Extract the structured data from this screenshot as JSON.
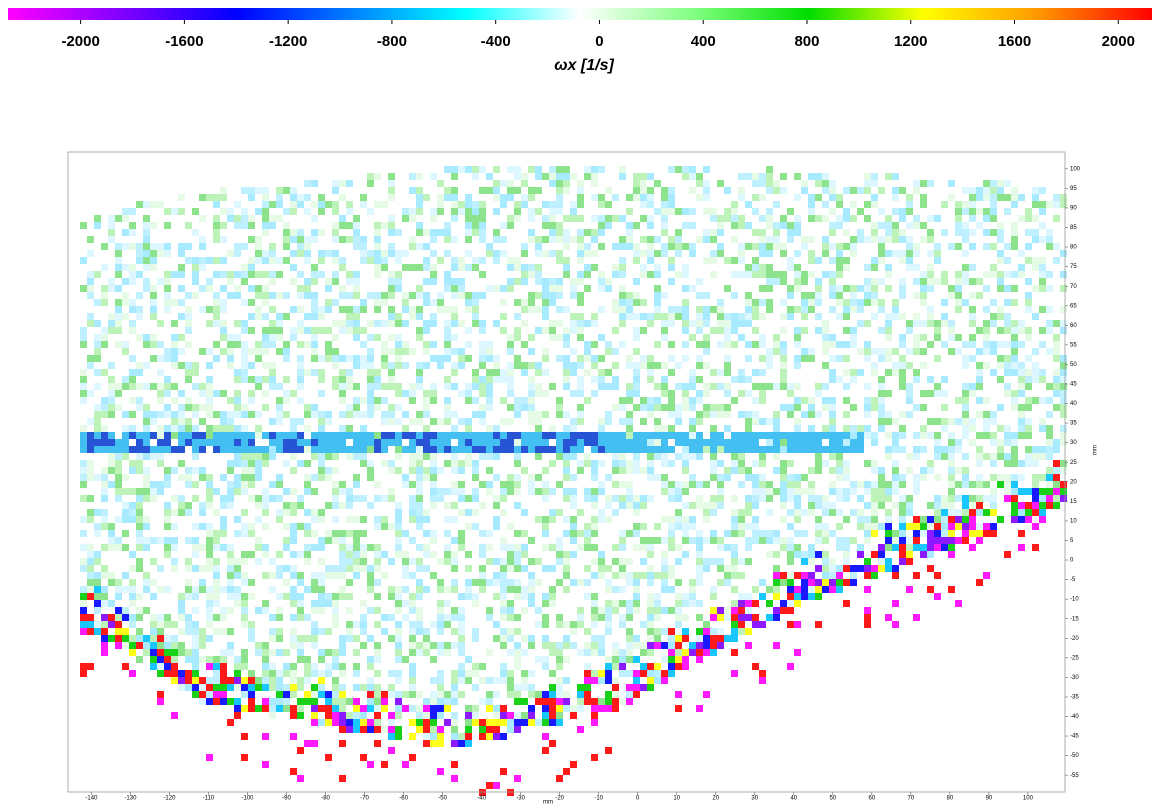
{
  "chart_data": {
    "type": "heatmap",
    "colorbar": {
      "label": "ωx [1/s]",
      "clim": [
        -2280,
        2130
      ],
      "ticks": [
        -2000,
        -1600,
        -1200,
        -800,
        -400,
        0,
        400,
        800,
        1200,
        1600,
        2000
      ],
      "colors": [
        "#ff00ff",
        "#8000ff",
        "#0000ff",
        "#0080ff",
        "#00ffff",
        "#ffffff",
        "#80ff80",
        "#00dd00",
        "#ffff00",
        "#ff9900",
        "#ff0000"
      ]
    },
    "x_label": "mm",
    "y_label": "mm",
    "xlim": [
      -146,
      109.5
    ],
    "ylim": [
      -59.3,
      104.3
    ],
    "xticks": [
      -140,
      -130,
      -120,
      -110,
      -100,
      -90,
      -80,
      -70,
      -60,
      -50,
      -40,
      -30,
      -20,
      -10,
      0,
      10,
      20,
      30,
      40,
      50,
      60,
      70,
      80,
      90,
      100
    ],
    "yticks": [
      -55,
      -50,
      -45,
      -40,
      -35,
      -30,
      -25,
      -20,
      -15,
      -10,
      -5,
      0,
      5,
      10,
      15,
      20,
      25,
      30,
      35,
      40,
      45,
      50,
      55,
      60,
      65,
      70,
      75,
      80,
      85,
      90,
      95,
      100
    ]
  }
}
